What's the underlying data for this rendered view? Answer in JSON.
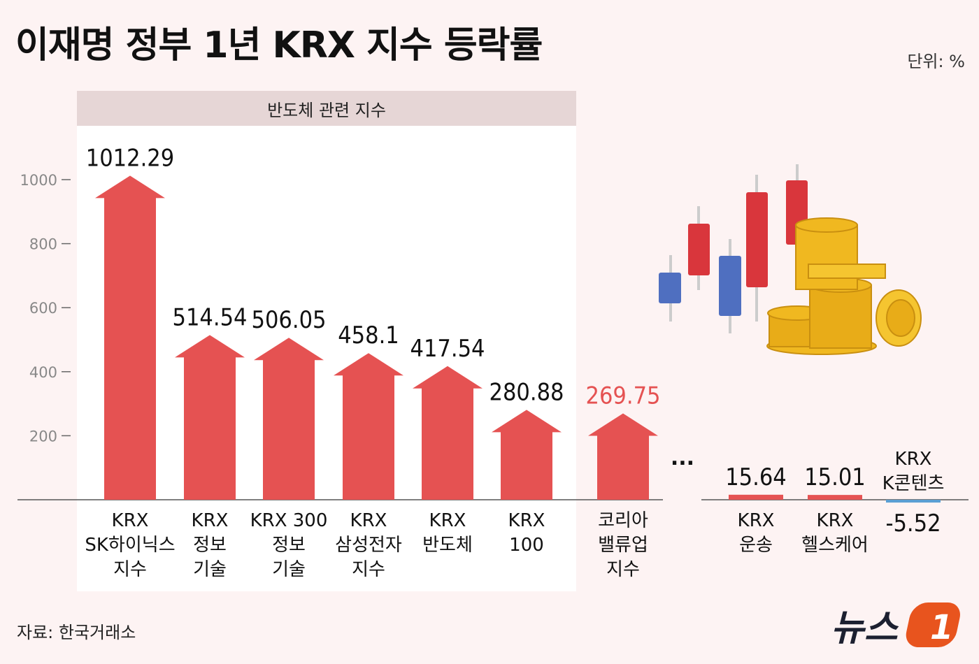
{
  "title": "이재명 정부 1년 KRX 지수 등락률",
  "unit": "단위: %",
  "group_label": "반도체 관련 지수",
  "source": "자료: 한국거래소",
  "logo": {
    "text": "뉴스",
    "number": "1"
  },
  "ellipsis": "...",
  "colors": {
    "bar": "#e55252",
    "negative": "#5a9fd4",
    "highlight_label": "#e55252",
    "group_bg": "#e6d6d6"
  },
  "chart_data": {
    "type": "bar",
    "y_ticks": [
      200,
      400,
      600,
      800,
      1000
    ],
    "ylim": [
      0,
      1000
    ],
    "categories": [
      {
        "name": "KRX SK하이닉스 지수",
        "lines": [
          "KRX",
          "SK하이닉스",
          "지수"
        ],
        "value": 1012.29,
        "label": "1012.29"
      },
      {
        "name": "KRX 정보기술",
        "lines": [
          "KRX",
          "정보",
          "기술"
        ],
        "value": 514.54,
        "label": "514.54"
      },
      {
        "name": "KRX 300 정보기술",
        "lines": [
          "KRX 300",
          "정보",
          "기술"
        ],
        "value": 506.05,
        "label": "506.05"
      },
      {
        "name": "KRX 삼성전자 지수",
        "lines": [
          "KRX",
          "삼성전자",
          "지수"
        ],
        "value": 458.1,
        "label": "458.1"
      },
      {
        "name": "KRX 반도체",
        "lines": [
          "KRX",
          "반도체"
        ],
        "value": 417.54,
        "label": "417.54"
      },
      {
        "name": "KRX 100",
        "lines": [
          "KRX",
          "100"
        ],
        "value": 280.88,
        "label": "280.88"
      },
      {
        "name": "코리아 밸류업 지수",
        "lines": [
          "코리아",
          "밸류업",
          "지수"
        ],
        "value": 269.75,
        "label": "269.75",
        "highlight": true
      },
      {
        "name": "KRX 운송",
        "lines": [
          "KRX",
          "운송"
        ],
        "value": 15.64,
        "label": "15.64"
      },
      {
        "name": "KRX 헬스케어",
        "lines": [
          "KRX",
          "헬스케어"
        ],
        "value": 15.01,
        "label": "15.01"
      },
      {
        "name": "KRX K콘텐츠",
        "lines": [
          "KRX",
          "K콘텐츠"
        ],
        "value": -5.52,
        "label": "-5.52",
        "label_above": true
      }
    ]
  }
}
